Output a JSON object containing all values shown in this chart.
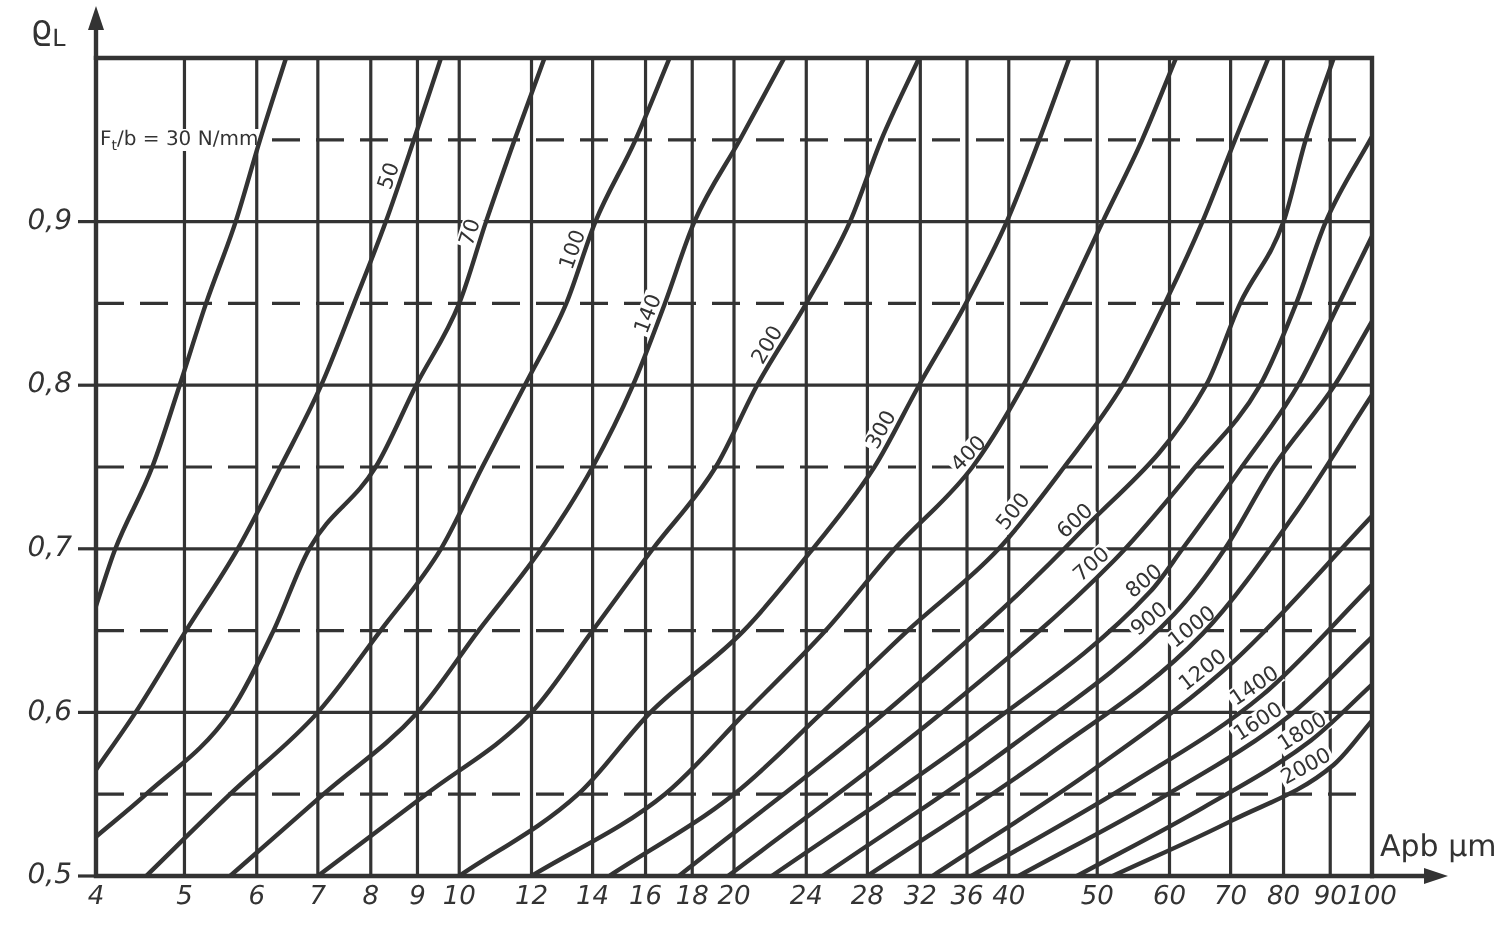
{
  "chart_data": {
    "type": "line",
    "xlabel": "Apb µm",
    "ylabel": "ϱ$_{L}$",
    "log": "x",
    "grid": true,
    "legend": false,
    "marker": "none",
    "line_style": "solid",
    "xlim": [
      4,
      100
    ],
    "xticks": [
      4,
      5,
      6,
      7,
      8,
      9,
      10,
      12,
      14,
      16,
      18,
      20,
      24,
      28,
      32,
      36,
      40,
      50,
      60,
      70,
      80,
      90,
      100
    ],
    "ylim": [
      0.5,
      1.0
    ],
    "yticks": [
      {
        "value": 0.5,
        "label": "0,5"
      },
      {
        "value": 0.55,
        "label": null
      },
      {
        "value": 0.6,
        "label": "0,6"
      },
      {
        "value": 0.65,
        "label": null
      },
      {
        "value": 0.7,
        "label": "0,7"
      },
      {
        "value": 0.75,
        "label": null
      },
      {
        "value": 0.8,
        "label": "0,8"
      },
      {
        "value": 0.85,
        "label": null
      },
      {
        "value": 0.9,
        "label": "0,9"
      },
      {
        "value": 0.95,
        "label": null
      },
      {
        "value": 1.0,
        "label": null
      }
    ],
    "series": [
      {
        "name": "F$_{t}$/b = 30 N/mm",
        "color": "#333333",
        "x": [
          4,
          4.2,
          4.61,
          4.94,
          5.28,
          5.69,
          6.05,
          6.46
        ],
        "values": [
          0.665,
          0.7,
          0.75,
          0.8,
          0.85,
          0.9,
          0.95,
          1.0
        ]
      },
      {
        "name": "50",
        "color": "#333333",
        "x": [
          4,
          4.42,
          5.02,
          5.72,
          6.37,
          7.06,
          7.67,
          8.31,
          8.92,
          9.55
        ],
        "values": [
          0.565,
          0.6,
          0.65,
          0.7,
          0.75,
          0.8,
          0.85,
          0.9,
          0.95,
          1.0
        ]
      },
      {
        "name": "70",
        "color": "#333333",
        "x": [
          4,
          4.54,
          5.61,
          6.26,
          6.85,
          8.1,
          8.97,
          10.0,
          10.7,
          11.5,
          12.4
        ],
        "values": [
          0.524,
          0.55,
          0.6,
          0.65,
          0.7,
          0.75,
          0.8,
          0.85,
          0.9,
          0.95,
          1.0
        ]
      },
      {
        "name": "100",
        "color": "#333333",
        "x": [
          4.54,
          5.61,
          7.0,
          8.2,
          9.55,
          10.6,
          11.8,
          13.1,
          14.1,
          15.6,
          17.0
        ],
        "values": [
          0.5,
          0.55,
          0.6,
          0.65,
          0.7,
          0.75,
          0.8,
          0.85,
          0.9,
          0.95,
          1.0
        ]
      },
      {
        "name": "140",
        "color": "#333333",
        "x": [
          5.61,
          7.1,
          9.0,
          10.5,
          12.3,
          14.0,
          15.5,
          16.8,
          18.1,
          20.3,
          22.7
        ],
        "values": [
          0.5,
          0.55,
          0.6,
          0.65,
          0.7,
          0.75,
          0.8,
          0.85,
          0.9,
          0.95,
          1.0
        ]
      },
      {
        "name": "200",
        "color": "#333333",
        "x": [
          7.0,
          9.2,
          12.0,
          14.0,
          16.3,
          19.1,
          21.2,
          24.0,
          26.8,
          29.0,
          31.9
        ],
        "values": [
          0.5,
          0.55,
          0.6,
          0.65,
          0.7,
          0.75,
          0.8,
          0.85,
          0.9,
          0.95,
          1.0
        ]
      },
      {
        "name": "300",
        "color": "#333333",
        "x": [
          10,
          13.5,
          16.2,
          20.5,
          24.4,
          28.5,
          31.9,
          35.9,
          39.8,
          43.2,
          46.6
        ],
        "values": [
          0.5,
          0.55,
          0.6,
          0.65,
          0.7,
          0.75,
          0.8,
          0.85,
          0.9,
          0.95,
          1.0
        ]
      },
      {
        "name": "400",
        "color": "#333333",
        "x": [
          12,
          16.8,
          20.6,
          25.2,
          30,
          36.5,
          41.5,
          46,
          50.7,
          56,
          61
        ],
        "values": [
          0.5,
          0.55,
          0.6,
          0.65,
          0.7,
          0.75,
          0.8,
          0.85,
          0.9,
          0.95,
          1.0
        ]
      },
      {
        "name": "500",
        "color": "#333333",
        "x": [
          14.6,
          20,
          25,
          31,
          39,
          46,
          53.3,
          59.3,
          65.2,
          70.8,
          77
        ],
        "values": [
          0.5,
          0.55,
          0.6,
          0.65,
          0.7,
          0.75,
          0.8,
          0.85,
          0.9,
          0.95,
          1.0
        ]
      },
      {
        "name": "600",
        "color": "#333333",
        "x": [
          17.4,
          30,
          47.7,
          65.8,
          71.7,
          80,
          84.6,
          90.8
        ],
        "values": [
          0.5,
          0.605,
          0.709,
          0.8,
          0.85,
          0.9,
          0.95,
          1.0
        ]
      },
      {
        "name": "700",
        "color": "#333333",
        "x": [
          19.7,
          33.3,
          52.2,
          64,
          75.4,
          82.6,
          89,
          100
        ],
        "values": [
          0.5,
          0.597,
          0.693,
          0.75,
          0.8,
          0.85,
          0.9,
          0.952
        ]
      },
      {
        "name": "800",
        "color": "#333333",
        "x": [
          22,
          36.9,
          57.2,
          62,
          72,
          83,
          92,
          100
        ],
        "values": [
          0.5,
          0.587,
          0.674,
          0.7,
          0.75,
          0.8,
          0.85,
          0.891
        ]
      },
      {
        "name": "900",
        "color": "#333333",
        "x": [
          25,
          40.4,
          60.7,
          69,
          78,
          91,
          100
        ],
        "values": [
          0.5,
          0.58,
          0.66,
          0.7,
          0.75,
          0.8,
          0.839
        ]
      },
      {
        "name": "1000",
        "color": "#333333",
        "x": [
          28,
          44.2,
          65.2,
          82,
          100
        ],
        "values": [
          0.5,
          0.574,
          0.648,
          0.72,
          0.794
        ]
      },
      {
        "name": "1200",
        "color": "#333333",
        "x": [
          33,
          49.8,
          70.8,
          100
        ],
        "values": [
          0.5,
          0.566,
          0.632,
          0.72
        ]
      },
      {
        "name": "1400",
        "color": "#333333",
        "x": [
          36.4,
          54.2,
          76,
          100
        ],
        "values": [
          0.5,
          0.556,
          0.611,
          0.678
        ]
      },
      {
        "name": "1600",
        "color": "#333333",
        "x": [
          41,
          59.3,
          81.2,
          100
        ],
        "values": [
          0.5,
          0.549,
          0.598,
          0.646
        ]
      },
      {
        "name": "1800",
        "color": "#333333",
        "x": [
          47.5,
          65.4,
          85.8,
          100
        ],
        "values": [
          0.5,
          0.542,
          0.583,
          0.617
        ]
      },
      {
        "name": "2000",
        "color": "#333333",
        "x": [
          52,
          70.3,
          90.8,
          100
        ],
        "values": [
          0.5,
          0.534,
          0.568,
          0.595
        ]
      }
    ]
  }
}
